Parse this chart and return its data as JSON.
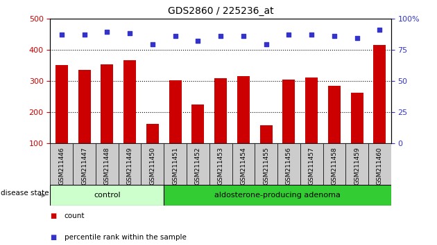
{
  "title": "GDS2860 / 225236_at",
  "categories": [
    "GSM211446",
    "GSM211447",
    "GSM211448",
    "GSM211449",
    "GSM211450",
    "GSM211451",
    "GSM211452",
    "GSM211453",
    "GSM211454",
    "GSM211455",
    "GSM211456",
    "GSM211457",
    "GSM211458",
    "GSM211459",
    "GSM211460"
  ],
  "bar_values": [
    350,
    335,
    352,
    365,
    163,
    302,
    224,
    309,
    315,
    158,
    304,
    310,
    283,
    263,
    415
  ],
  "scatter_values": [
    87,
    87,
    89,
    88,
    79,
    86,
    82,
    86,
    86,
    79,
    87,
    87,
    86,
    84,
    91
  ],
  "control_count": 5,
  "adenoma_count": 10,
  "ylim_left": [
    100,
    500
  ],
  "ylim_right": [
    0,
    100
  ],
  "yticks_left": [
    100,
    200,
    300,
    400,
    500
  ],
  "yticks_right": [
    0,
    25,
    50,
    75,
    100
  ],
  "bar_color": "#cc0000",
  "scatter_color": "#3333cc",
  "control_label": "control",
  "adenoma_label": "aldosterone-producing adenoma",
  "control_bg": "#ccffcc",
  "adenoma_bg": "#33cc33",
  "tick_bg": "#cccccc",
  "legend_count": "count",
  "legend_pct": "percentile rank within the sample",
  "disease_state_label": "disease state",
  "grid_color": "#000000",
  "title_fontsize": 10,
  "label_fontsize": 6.5,
  "band_fontsize": 8,
  "legend_fontsize": 7.5
}
